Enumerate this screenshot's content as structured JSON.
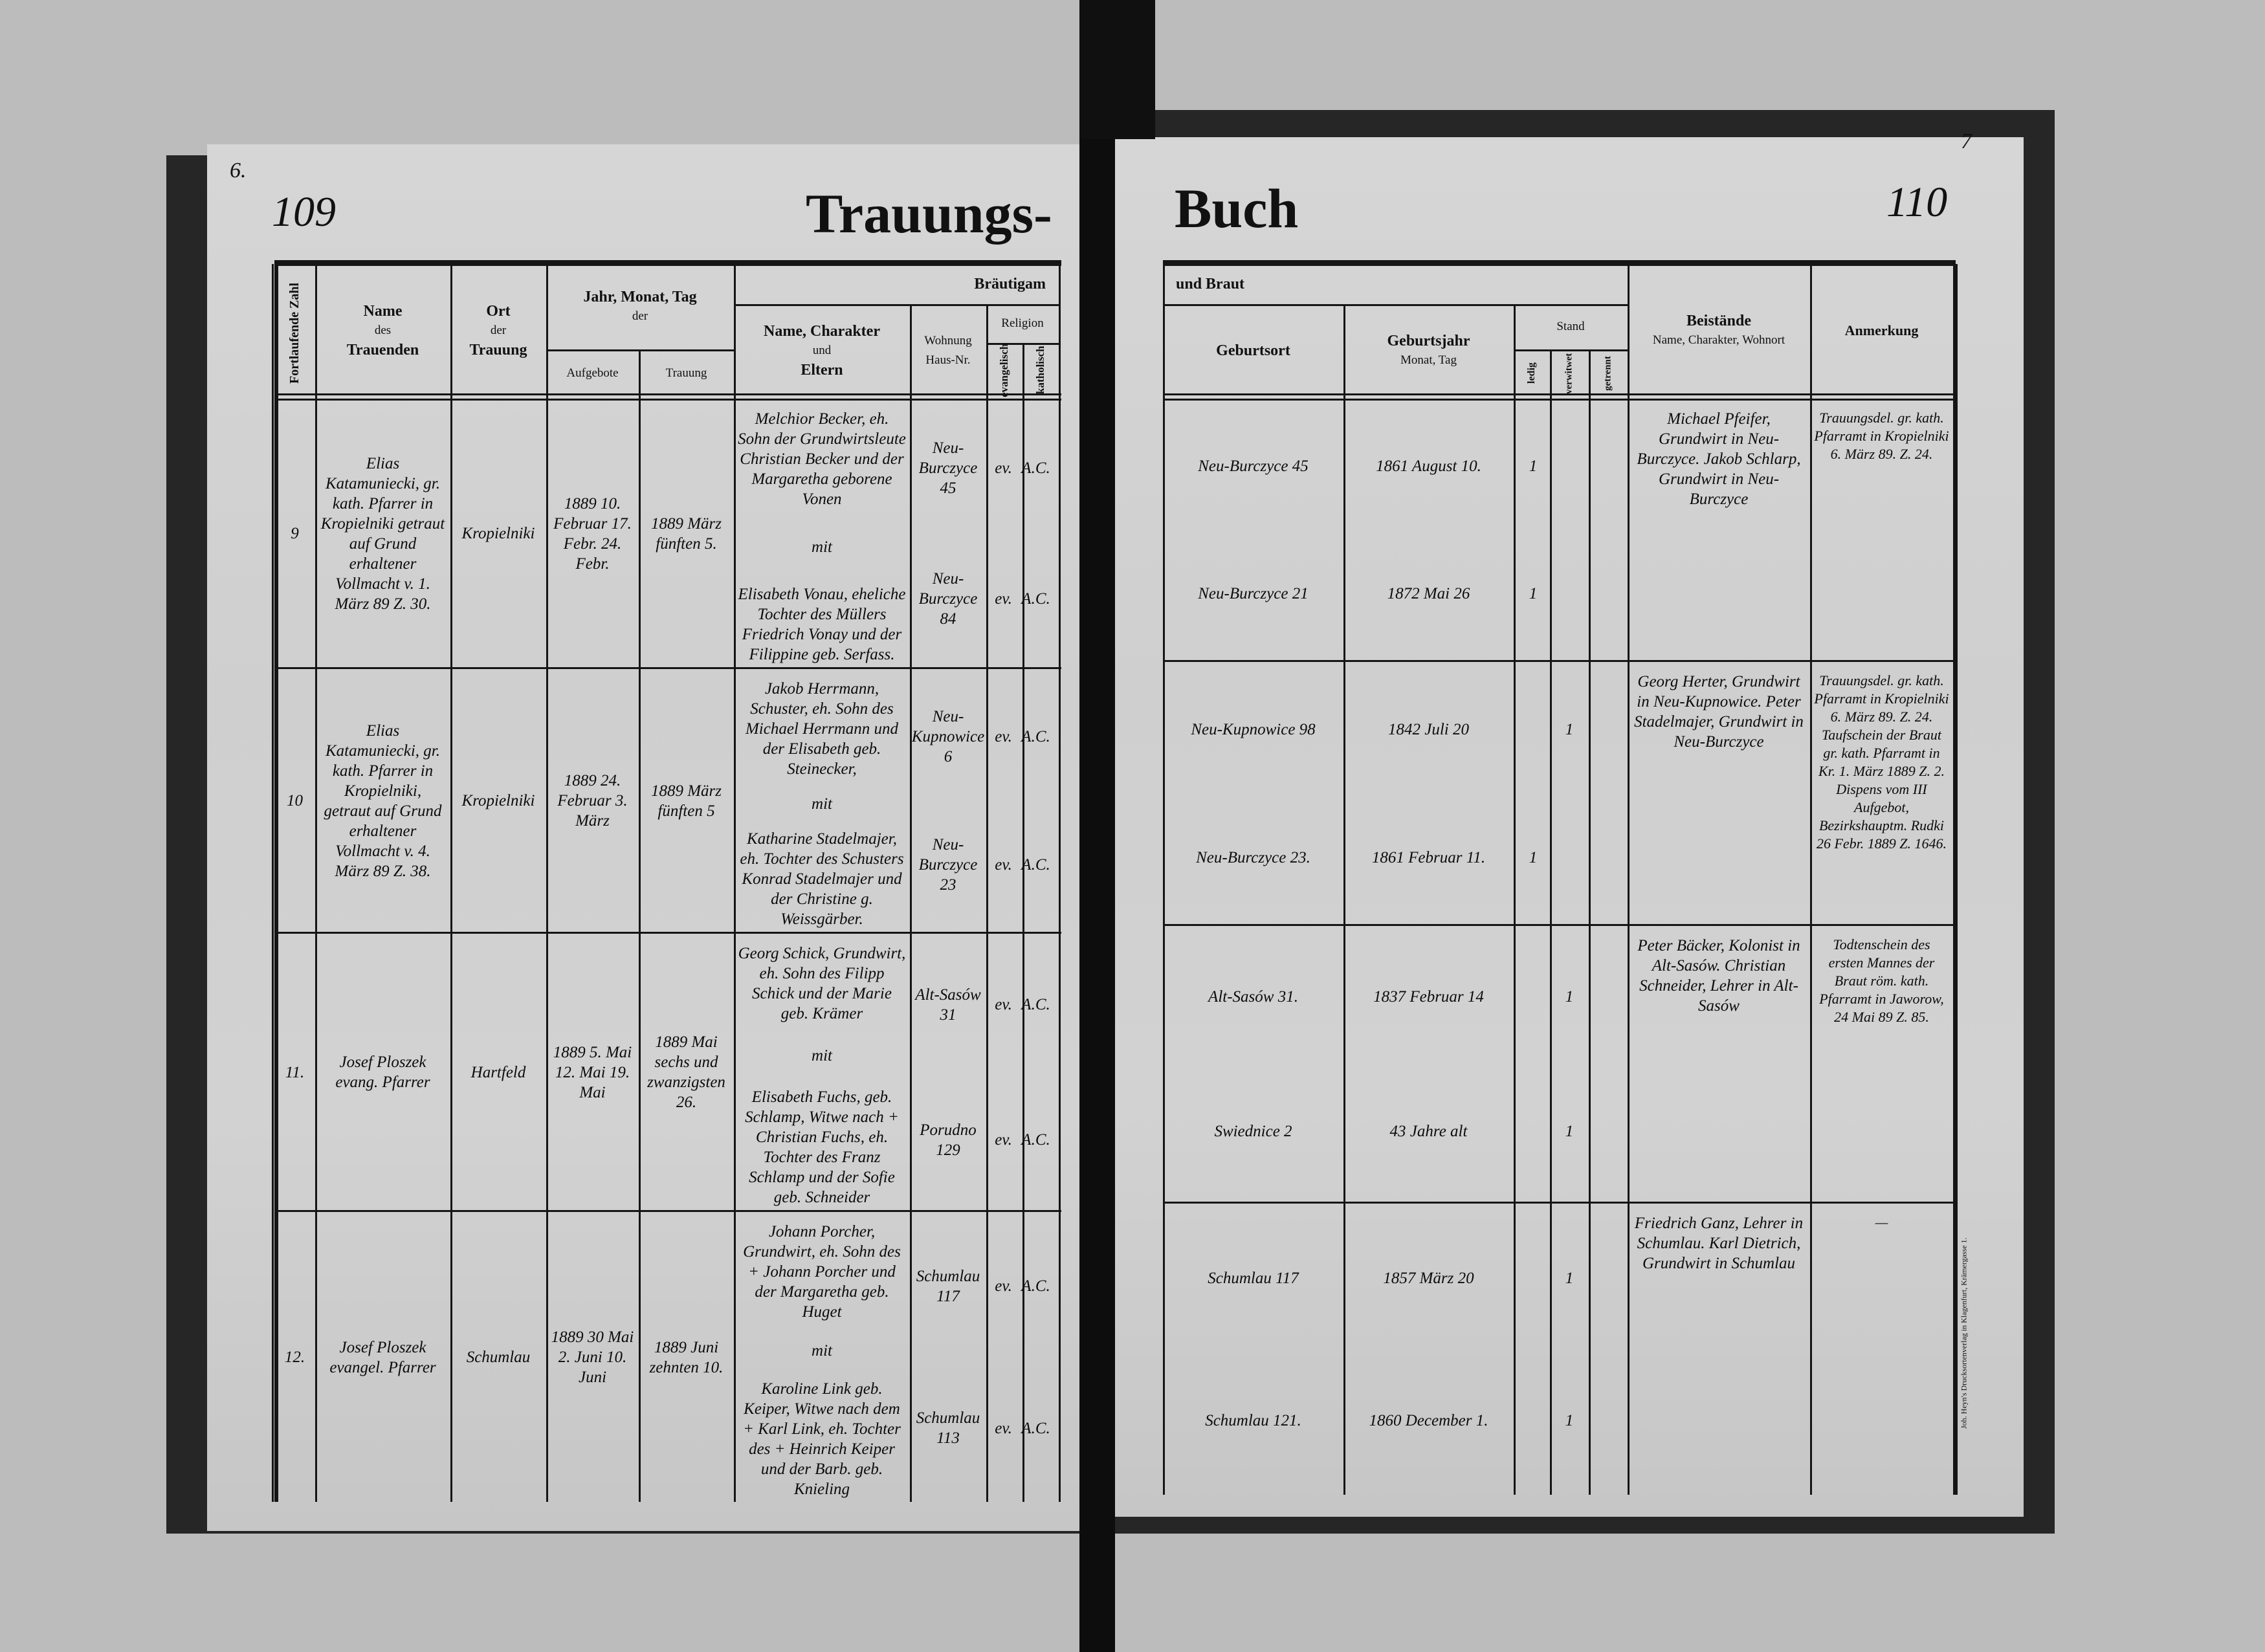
{
  "left_page": {
    "corner_mark": "6.",
    "page_number": "109",
    "title": "Trauungs-",
    "headers": {
      "nr": "Fortlaufende Zahl",
      "name_1": "Name",
      "name_2": "des",
      "name_3": "Trauenden",
      "ort_1": "Ort",
      "ort_2": "der",
      "ort_3": "Trauung",
      "date_1": "Jahr, Monat, Tag",
      "date_2": "der",
      "aufgebote": "Aufgebote",
      "trauung": "Trauung",
      "braeutigam": "Bräutigam",
      "parents_1": "Name, Charakter",
      "parents_2": "und",
      "parents_3": "Eltern",
      "wohnung_1": "Wohnung",
      "wohnung_2": "Haus-Nr.",
      "religion": "Religion",
      "evang": "evangelisch",
      "kath": "katholisch"
    }
  },
  "right_page": {
    "corner_mark": "7",
    "page_number": "110",
    "title": "Buch",
    "imprint": "Joh. Heyn's Drucksortenverlag in Klagenfurt, Krämergasse 1.",
    "headers": {
      "und_braut": "und Braut",
      "geburtsort": "Geburtsort",
      "geburtsjahr_1": "Geburtsjahr",
      "geburtsjahr_2": "Monat, Tag",
      "stand": "Stand",
      "ledig": "ledig",
      "verwitwet": "verwitwet",
      "getrennt": "getrennt",
      "beistaende_1": "Beistände",
      "beistaende_2": "Name, Charakter, Wohnort",
      "anmerkung": "Anmerkung"
    }
  },
  "entries": [
    {
      "nr": "9",
      "officiant": "Elias Katamuniecki, gr. kath. Pfarrer in Kropielniki getraut auf Grund erhaltener Vollmacht v. 1. März 89 Z. 30.",
      "ort": "Kropielniki",
      "aufgebote": "1889 10. Februar 17. Febr. 24. Febr.",
      "trauung": "1889 März fünften 5.",
      "mit": "mit",
      "groom": {
        "parents": "Melchior Becker, eh. Sohn der Grundwirtsleute Christian Becker und der Margaretha geborene Vonen",
        "wohnung": "Neu-Burczyce 45",
        "religion_1": "ev.",
        "religion_2": "A.C.",
        "geburtsort": "Neu-Burczyce 45",
        "geburtsdatum": "1861 August 10.",
        "stand": "ledig",
        "stand_mark": "1"
      },
      "bride": {
        "parents": "Elisabeth Vonau, eheliche Tochter des Müllers Friedrich Vonay und der Filippine geb. Serfass.",
        "wohnung": "Neu-Burczyce 84",
        "religion_1": "ev.",
        "religion_2": "A.C.",
        "geburtsort": "Neu-Burczyce 21",
        "geburtsdatum": "1872 Mai 26",
        "stand": "ledig",
        "stand_mark": "1"
      },
      "beistaende": "Michael Pfeifer, Grundwirt in Neu-Burczyce. Jakob Schlarp, Grundwirt in Neu-Burczyce",
      "anmerkung": "Trauungsdel. gr. kath. Pfarramt in Kropielniki 6. März 89. Z. 24."
    },
    {
      "nr": "10",
      "officiant": "Elias Katamuniecki, gr. kath. Pfarrer in Kropielniki, getraut auf Grund erhaltener Vollmacht v. 4. März 89 Z. 38.",
      "ort": "Kropielniki",
      "aufgebote": "1889 24. Februar 3. März",
      "trauung": "1889 März fünften 5",
      "mit": "mit",
      "groom": {
        "parents": "Jakob Herrmann, Schuster, eh. Sohn des Michael Herrmann und der Elisabeth geb. Steinecker,",
        "wohnung": "Neu-Kupnowice 6",
        "religion_1": "ev.",
        "religion_2": "A.C.",
        "geburtsort": "Neu-Kupnowice 98",
        "geburtsdatum": "1842 Juli 20",
        "stand": "verwitwet",
        "stand_mark": "1"
      },
      "bride": {
        "parents": "Katharine Stadelmajer, eh. Tochter des Schusters Konrad Stadelmajer und der Christine g. Weissgärber.",
        "wohnung": "Neu-Burczyce 23",
        "religion_1": "ev.",
        "religion_2": "A.C.",
        "geburtsort": "Neu-Burczyce 23.",
        "geburtsdatum": "1861 Februar 11.",
        "stand": "ledig",
        "stand_mark": "1"
      },
      "beistaende": "Georg Herter, Grundwirt in Neu-Kupnowice. Peter Stadelmajer, Grundwirt in Neu-Burczyce",
      "anmerkung": "Trauungsdel. gr. kath. Pfarramt in Kropielniki 6. März 89. Z. 24. Taufschein der Braut gr. kath. Pfarramt in Kr. 1. März 1889 Z. 2. Dispens vom III Aufgebot, Bezirkshauptm. Rudki 26 Febr. 1889 Z. 1646."
    },
    {
      "nr": "11.",
      "officiant": "Josef Ploszek evang. Pfarrer",
      "ort": "Hartfeld",
      "aufgebote": "1889 5. Mai 12. Mai 19. Mai",
      "trauung": "1889 Mai sechs und zwanzigsten 26.",
      "mit": "mit",
      "groom": {
        "parents": "Georg Schick, Grundwirt, eh. Sohn des Filipp Schick und der Marie geb. Krämer",
        "wohnung": "Alt-Sasów 31",
        "religion_1": "ev.",
        "religion_2": "A.C.",
        "geburtsort": "Alt-Sasów 31.",
        "geburtsdatum": "1837 Februar 14",
        "stand": "verwitwet",
        "stand_mark": "1"
      },
      "bride": {
        "parents": "Elisabeth Fuchs, geb. Schlamp, Witwe nach + Christian Fuchs, eh. Tochter des Franz Schlamp und der Sofie geb. Schneider",
        "wohnung": "Porudno 129",
        "religion_1": "ev.",
        "religion_2": "A.C.",
        "geburtsort": "Swiednice 2",
        "geburtsdatum": "43 Jahre alt",
        "stand": "verwitwet",
        "stand_mark": "1"
      },
      "beistaende": "Peter Bäcker, Kolonist in Alt-Sasów. Christian Schneider, Lehrer in Alt-Sasów",
      "anmerkung": "Todtenschein des ersten Mannes der Braut röm. kath. Pfarramt in Jaworow, 24 Mai 89 Z. 85."
    },
    {
      "nr": "12.",
      "officiant": "Josef Ploszek evangel. Pfarrer",
      "ort": "Schumlau",
      "aufgebote": "1889 30 Mai 2. Juni 10. Juni",
      "trauung": "1889 Juni zehnten 10.",
      "mit": "mit",
      "groom": {
        "parents": "Johann Porcher, Grundwirt, eh. Sohn des + Johann Porcher und der Margaretha geb. Huget",
        "wohnung": "Schumlau 117",
        "religion_1": "ev.",
        "religion_2": "A.C.",
        "geburtsort": "Schumlau 117",
        "geburtsdatum": "1857 März 20",
        "stand": "verwitwet",
        "stand_mark": "1"
      },
      "bride": {
        "parents": "Karoline Link geb. Keiper, Witwe nach dem + Karl Link, eh. Tochter des + Heinrich Keiper und der Barb. geb. Knieling",
        "wohnung": "Schumlau 113",
        "religion_1": "ev.",
        "religion_2": "A.C.",
        "geburtsort": "Schumlau 121.",
        "geburtsdatum": "1860 December 1.",
        "stand": "verwitwet",
        "stand_mark": "1"
      },
      "beistaende": "Friedrich Ganz, Lehrer in Schumlau. Karl Dietrich, Grundwirt in Schumlau",
      "anmerkung": "—"
    }
  ]
}
